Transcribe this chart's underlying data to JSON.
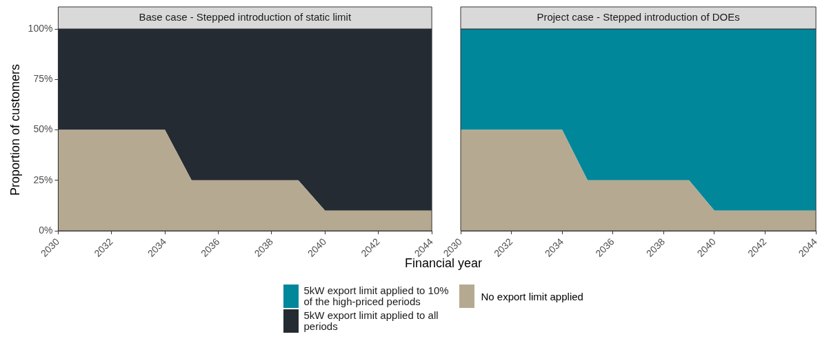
{
  "chart_data": [
    {
      "type": "area",
      "title": "Base case - Stepped introduction of static limit",
      "xlabel": "Financial year",
      "ylabel": "Proportion of customers",
      "stacked": true,
      "legend": "bottom",
      "grid": false,
      "x": [
        2030,
        2031,
        2032,
        2033,
        2034,
        2035,
        2036,
        2037,
        2038,
        2039,
        2040,
        2041,
        2042,
        2043,
        2044
      ],
      "series": [
        {
          "name": "No export limit applied",
          "color": "#b5a991",
          "values": [
            50,
            50,
            50,
            50,
            50,
            25,
            25,
            25,
            25,
            25,
            10,
            10,
            10,
            10,
            10
          ]
        },
        {
          "name": "5kW export limit applied to all periods",
          "color": "#242b33",
          "values": [
            50,
            50,
            50,
            50,
            50,
            75,
            75,
            75,
            75,
            75,
            90,
            90,
            90,
            90,
            90
          ]
        }
      ],
      "xlim": [
        2030,
        2044
      ],
      "xticks": [
        2030,
        2032,
        2034,
        2036,
        2038,
        2040,
        2042,
        2044
      ],
      "ylim": [
        0,
        100
      ],
      "yticks": [
        {
          "value": 0,
          "label": "0%"
        },
        {
          "value": 25,
          "label": "25%"
        },
        {
          "value": 50,
          "label": "50%"
        },
        {
          "value": 75,
          "label": "75%"
        },
        {
          "value": 100,
          "label": "100%"
        }
      ]
    },
    {
      "type": "area",
      "title": "Project case - Stepped introduction of DOEs",
      "stacked": true,
      "legend": "bottom",
      "grid": false,
      "tick_labels": "x",
      "x": [
        2030,
        2031,
        2032,
        2033,
        2034,
        2035,
        2036,
        2037,
        2038,
        2039,
        2040,
        2041,
        2042,
        2043,
        2044
      ],
      "series": [
        {
          "color": "#b5a991",
          "values": [
            50,
            50,
            50,
            50,
            50,
            25,
            25,
            25,
            25,
            25,
            10,
            10,
            10,
            10,
            10
          ]
        },
        {
          "name": "5kW export limit applied to 10% of the high-priced periods",
          "color": "#00879a",
          "values": [
            50,
            50,
            50,
            50,
            50,
            75,
            75,
            75,
            75,
            75,
            90,
            90,
            90,
            90,
            90
          ]
        }
      ],
      "xlim": [
        2030,
        2044
      ],
      "xticks": [
        2030,
        2032,
        2034,
        2036,
        2038,
        2040,
        2042,
        2044
      ],
      "ylim": [
        0,
        100
      ],
      "yticks": [
        {
          "value": 0,
          "label": null
        },
        {
          "value": 25,
          "label": null
        },
        {
          "value": 50,
          "label": null
        },
        {
          "value": 75,
          "label": null
        },
        {
          "value": 100,
          "label": null
        }
      ]
    }
  ]
}
